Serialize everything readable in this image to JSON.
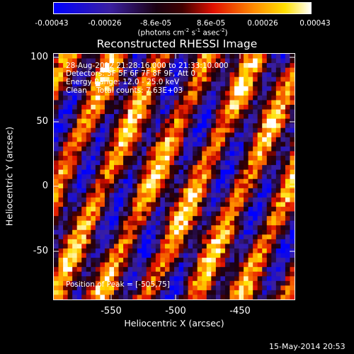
{
  "colorbar": {
    "ticks": [
      "-0.00043",
      "-0.00026",
      "-8.6e-05",
      "8.6e-05",
      "0.00026",
      "0.00043"
    ],
    "units_prefix": "(photons cm",
    "units_exp1": "-2",
    "units_mid": " s",
    "units_exp2": "-1",
    "units_mid2": " asec",
    "units_exp3": "-2",
    "units_suffix": ")"
  },
  "title": "Reconstructed RHESSI Image",
  "annotations": {
    "time_range": "28-Aug-2012 21:28:16.000 to 21:33:10.000",
    "detectors": "Detectors: 3F 5F 6F 7F 8F 9F, Att 0",
    "energy": "Energy Range: 12.0 - 25.0 keV",
    "clean": "Clean    Total counts: 7.63E+03",
    "peak": "Position of Peak = [-505,75]"
  },
  "axes": {
    "xlabel": "Heliocentric X (arcsec)",
    "ylabel": "Heliocentric Y (arcsec)",
    "x_ticks": [
      "-550",
      "-500",
      "-450"
    ],
    "y_ticks": [
      "100",
      "50",
      "0",
      "-50"
    ]
  },
  "footer": "15-May-2014 20:53",
  "colors": {
    "colormap": [
      "#0000ff",
      "#4b0082",
      "#000000",
      "#ff2a00",
      "#ff9900",
      "#ffff00",
      "#ffffff"
    ]
  }
}
